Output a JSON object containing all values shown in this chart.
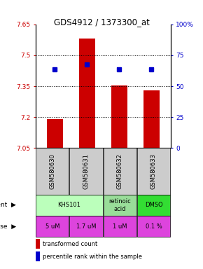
{
  "title": "GDS4912 / 1373300_at",
  "samples": [
    "GSM580630",
    "GSM580631",
    "GSM580632",
    "GSM580633"
  ],
  "bar_values": [
    7.19,
    7.58,
    7.355,
    7.33
  ],
  "percentile_values": [
    7.43,
    7.455,
    7.43,
    7.43
  ],
  "bar_bottom": 7.05,
  "ylim_left": [
    7.05,
    7.65
  ],
  "ylim_right": [
    0,
    100
  ],
  "yticks_left": [
    7.05,
    7.2,
    7.35,
    7.5,
    7.65
  ],
  "yticks_right": [
    0,
    25,
    50,
    75,
    100
  ],
  "ytick_labels_left": [
    "7.05",
    "7.2",
    "7.35",
    "7.5",
    "7.65"
  ],
  "ytick_labels_right": [
    "0",
    "25",
    "50",
    "75",
    "100%"
  ],
  "hlines": [
    7.2,
    7.35,
    7.5
  ],
  "bar_color": "#cc0000",
  "percentile_color": "#0000cc",
  "dose_labels": [
    "5 uM",
    "1.7 uM",
    "1 uM",
    "0.1 %"
  ],
  "dose_color": "#dd44dd",
  "sample_bg_color": "#cccccc",
  "legend_bar_color": "#cc0000",
  "legend_pct_color": "#0000cc",
  "left_axis_color": "#cc0000",
  "right_axis_color": "#0000cc",
  "agent_data": [
    [
      0,
      2,
      "KHS101",
      "#bbffbb"
    ],
    [
      2,
      3,
      "retinoic\nacid",
      "#99dd99"
    ],
    [
      3,
      4,
      "DMSO",
      "#33dd33"
    ]
  ]
}
